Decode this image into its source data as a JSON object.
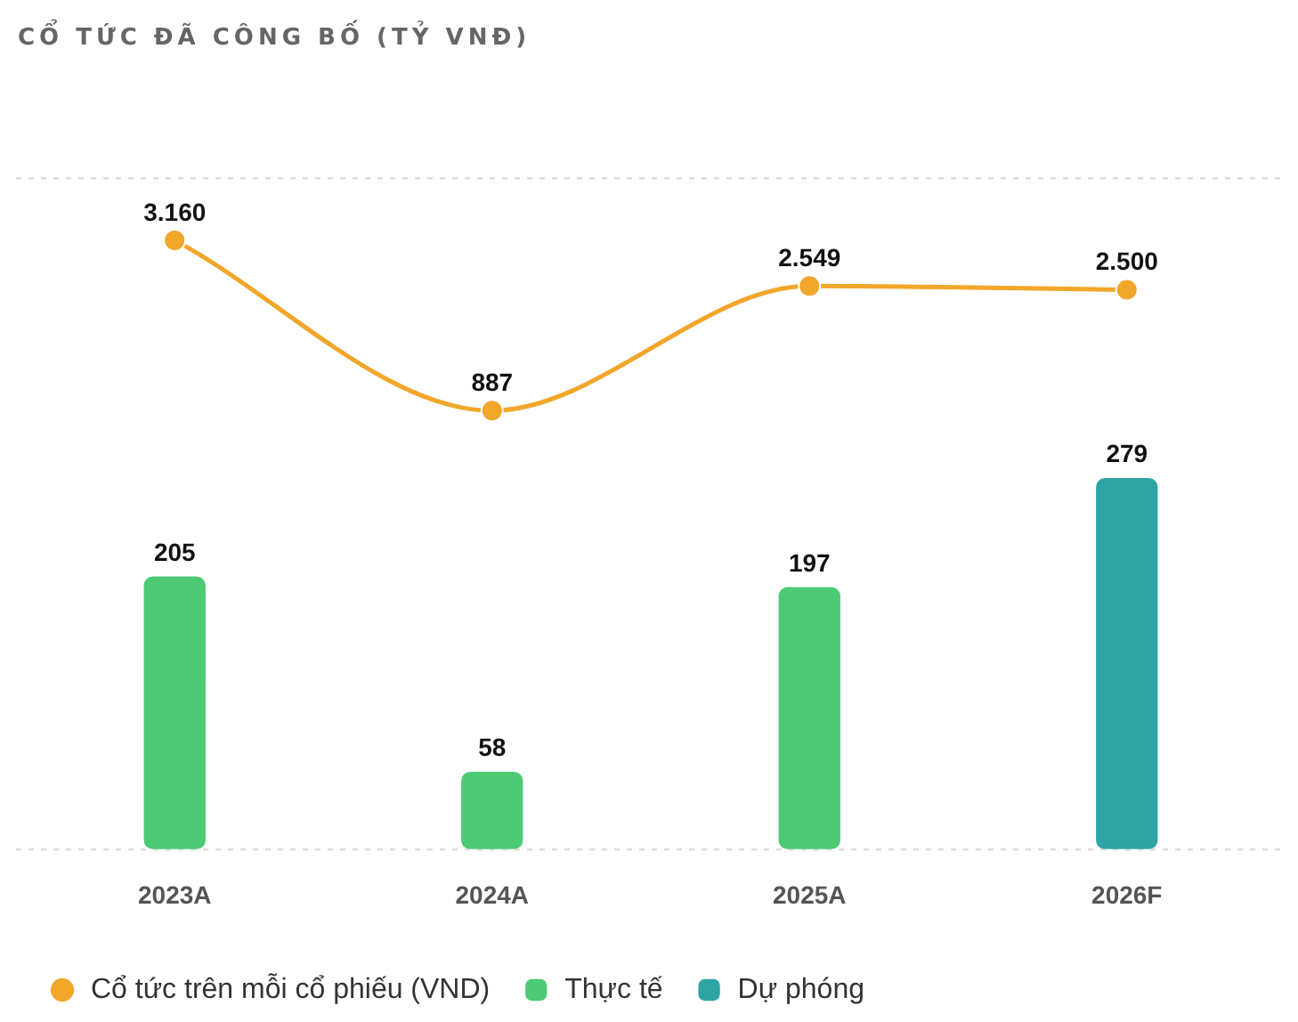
{
  "chart_data": {
    "type": "bar",
    "title": "CỔ TỨC ĐÃ CÔNG BỐ (TỶ VNĐ)",
    "categories": [
      "2023A",
      "2024A",
      "2025A",
      "2026F"
    ],
    "series": [
      {
        "name": "Thực tế",
        "color": "#4cca74",
        "values": [
          205,
          58,
          197,
          null
        ],
        "value_labels": [
          "205",
          "58",
          "197",
          null
        ]
      },
      {
        "name": "Dự phóng",
        "color": "#2ea5a5",
        "values": [
          null,
          null,
          null,
          279
        ],
        "value_labels": [
          null,
          null,
          null,
          "279"
        ]
      },
      {
        "name": "Cổ tức trên mỗi cổ phiếu (VND)",
        "type": "line",
        "axis": "y2",
        "color": "#f2a62a",
        "values": [
          3160,
          887,
          2549,
          2500
        ],
        "value_labels": [
          "3.160",
          "887",
          "2.549",
          "2.500"
        ]
      }
    ],
    "ylim": [
      0,
      505
    ],
    "yticks": [
      {
        "value": 0,
        "label": null
      },
      {
        "value": 505,
        "label": null
      }
    ],
    "y2lim": [
      -4970,
      3990
    ],
    "tick_labels": "x",
    "grid": "y",
    "legend": "bottom left",
    "marker": "circle",
    "line_style": "solid"
  }
}
